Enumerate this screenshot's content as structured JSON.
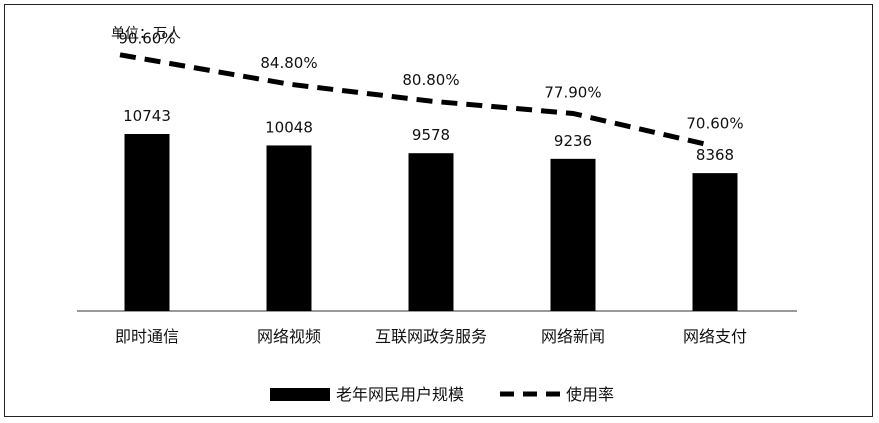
{
  "chart_data": {
    "type": "bar",
    "unit_label": "单位：万人",
    "categories": [
      "即时通信",
      "网络视频",
      "互联网政务服务",
      "网络新闻",
      "网络支付"
    ],
    "series": [
      {
        "name": "老年网民用户规模",
        "type": "bar",
        "values": [
          10743,
          10048,
          9578,
          9236,
          8368
        ],
        "labels": [
          "10743",
          "10048",
          "9578",
          "9236",
          "8368"
        ],
        "color": "#000000"
      },
      {
        "name": "使用率",
        "type": "line",
        "style": "dashed",
        "values": [
          90.6,
          84.8,
          80.8,
          77.9,
          70.6
        ],
        "labels": [
          "90.60%",
          "84.80%",
          "80.80%",
          "77.90%",
          "70.60%"
        ],
        "color": "#000000"
      }
    ],
    "legend": {
      "placement": "bottom",
      "entries": [
        "老年网民用户规模",
        "使用率"
      ]
    },
    "grid": false
  }
}
